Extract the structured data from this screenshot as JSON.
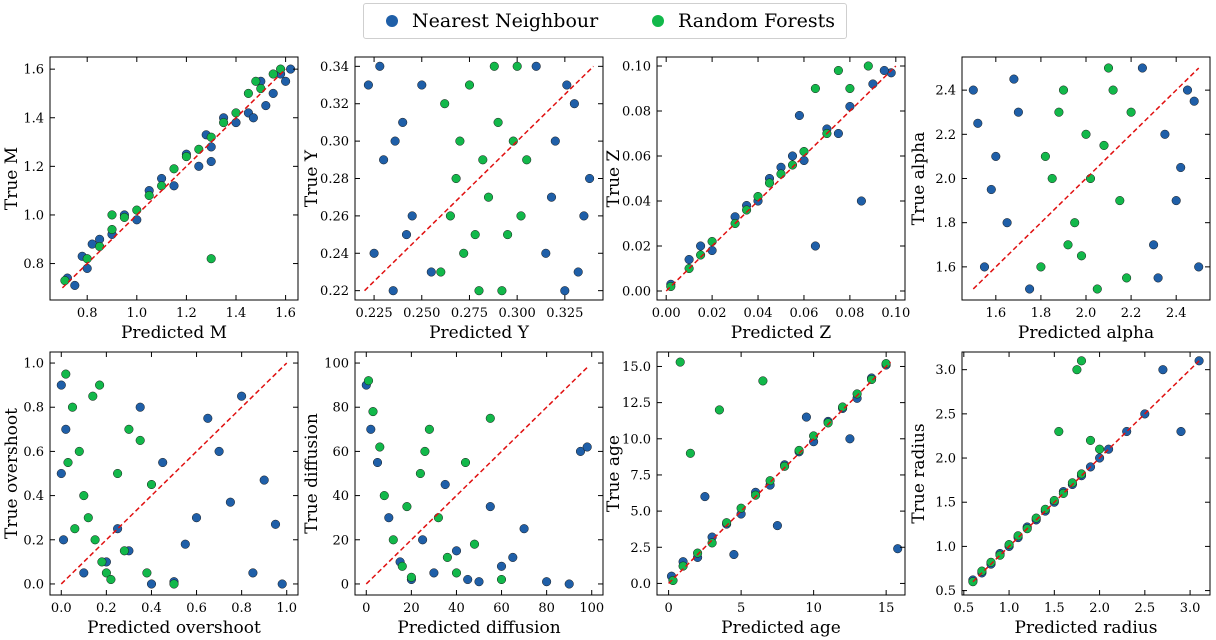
{
  "legend": {
    "items": [
      {
        "label": "Nearest Neighbour",
        "color": "#1f5fa8"
      },
      {
        "label": "Random Forests",
        "color": "#12b84a"
      }
    ]
  },
  "chart_data": [
    {
      "type": "scatter",
      "xlabel": "Predicted M",
      "ylabel": "True M",
      "xlim": [
        0.65,
        1.65
      ],
      "ylim": [
        0.65,
        1.65
      ],
      "xticks": [
        "0.8",
        "1.0",
        "1.2",
        "1.4",
        "1.6"
      ],
      "xtick_values": [
        0.8,
        1.0,
        1.2,
        1.4,
        1.6
      ],
      "yticks": [
        "0.8",
        "1.0",
        "1.2",
        "1.4",
        "1.6"
      ],
      "ytick_values": [
        0.8,
        1.0,
        1.2,
        1.4,
        1.6
      ],
      "diagonal": [
        0.7,
        1.6
      ],
      "series": [
        {
          "name": "Nearest Neighbour",
          "x": [
            0.72,
            0.8,
            0.9,
            1.0,
            1.05,
            1.15,
            1.2,
            1.3,
            1.35,
            1.45,
            1.5,
            1.58,
            0.85,
            0.95,
            1.1,
            1.25,
            1.4,
            1.55,
            0.78,
            1.6,
            0.82,
            1.28,
            1.47,
            1.52,
            0.75,
            1.62,
            1.3
          ],
          "y": [
            0.74,
            0.78,
            0.92,
            0.98,
            1.1,
            1.12,
            1.25,
            1.28,
            1.4,
            1.42,
            1.55,
            1.58,
            0.9,
            1.0,
            1.15,
            1.2,
            1.38,
            1.5,
            0.83,
            1.55,
            0.88,
            1.33,
            1.4,
            1.45,
            0.71,
            1.6,
            1.22
          ]
        },
        {
          "name": "Random Forests",
          "x": [
            0.71,
            0.8,
            0.9,
            1.0,
            1.1,
            1.2,
            1.3,
            1.4,
            1.5,
            1.55,
            0.85,
            0.95,
            1.05,
            1.15,
            1.25,
            1.35,
            1.45,
            1.58,
            1.3,
            0.9,
            1.48
          ],
          "y": [
            0.73,
            0.82,
            0.94,
            1.02,
            1.12,
            1.24,
            1.32,
            1.42,
            1.52,
            1.58,
            0.87,
            0.99,
            1.08,
            1.19,
            1.27,
            1.38,
            1.5,
            1.6,
            0.82,
            1.0,
            1.55
          ]
        }
      ]
    },
    {
      "type": "scatter",
      "xlabel": "Predicted Y",
      "ylabel": "True Y",
      "xlim": [
        0.215,
        0.345
      ],
      "ylim": [
        0.215,
        0.345
      ],
      "xticks": [
        "0.225",
        "0.250",
        "0.275",
        "0.300",
        "0.325"
      ],
      "xtick_values": [
        0.225,
        0.25,
        0.275,
        0.3,
        0.325
      ],
      "yticks": [
        "0.22",
        "0.24",
        "0.26",
        "0.28",
        "0.30",
        "0.32",
        "0.34"
      ],
      "ytick_values": [
        0.22,
        0.24,
        0.26,
        0.28,
        0.3,
        0.32,
        0.34
      ],
      "diagonal": [
        0.22,
        0.34
      ],
      "series": [
        {
          "name": "Nearest Neighbour",
          "x": [
            0.222,
            0.225,
            0.23,
            0.235,
            0.24,
            0.245,
            0.25,
            0.255,
            0.31,
            0.315,
            0.32,
            0.325,
            0.33,
            0.335,
            0.338,
            0.228,
            0.242,
            0.318,
            0.332,
            0.236,
            0.326
          ],
          "y": [
            0.33,
            0.24,
            0.29,
            0.22,
            0.31,
            0.26,
            0.33,
            0.23,
            0.34,
            0.24,
            0.3,
            0.22,
            0.32,
            0.26,
            0.28,
            0.34,
            0.25,
            0.27,
            0.23,
            0.3,
            0.33
          ]
        },
        {
          "name": "Random Forests",
          "x": [
            0.26,
            0.265,
            0.27,
            0.275,
            0.28,
            0.285,
            0.29,
            0.295,
            0.3,
            0.305,
            0.262,
            0.272,
            0.282,
            0.292,
            0.302,
            0.268,
            0.288,
            0.298,
            0.278
          ],
          "y": [
            0.23,
            0.26,
            0.3,
            0.33,
            0.22,
            0.27,
            0.31,
            0.25,
            0.34,
            0.29,
            0.32,
            0.24,
            0.29,
            0.22,
            0.26,
            0.28,
            0.34,
            0.3,
            0.25
          ]
        }
      ]
    },
    {
      "type": "scatter",
      "xlabel": "Predicted Z",
      "ylabel": "True Z",
      "xlim": [
        -0.004,
        0.104
      ],
      "ylim": [
        -0.004,
        0.104
      ],
      "xticks": [
        "0.00",
        "0.02",
        "0.04",
        "0.06",
        "0.08",
        "0.10"
      ],
      "xtick_values": [
        0.0,
        0.02,
        0.04,
        0.06,
        0.08,
        0.1
      ],
      "yticks": [
        "0.00",
        "0.02",
        "0.04",
        "0.06",
        "0.08",
        "0.10"
      ],
      "ytick_values": [
        0.0,
        0.02,
        0.04,
        0.06,
        0.08,
        0.1
      ],
      "diagonal": [
        0.0,
        0.1
      ],
      "series": [
        {
          "name": "Nearest Neighbour",
          "x": [
            0.002,
            0.01,
            0.02,
            0.03,
            0.04,
            0.05,
            0.06,
            0.07,
            0.08,
            0.09,
            0.098,
            0.015,
            0.035,
            0.055,
            0.075,
            0.095,
            0.085,
            0.065,
            0.045,
            0.058
          ],
          "y": [
            0.003,
            0.014,
            0.018,
            0.033,
            0.04,
            0.055,
            0.058,
            0.072,
            0.082,
            0.092,
            0.097,
            0.02,
            0.038,
            0.06,
            0.07,
            0.098,
            0.04,
            0.02,
            0.05,
            0.078
          ]
        },
        {
          "name": "Random Forests",
          "x": [
            0.002,
            0.01,
            0.02,
            0.03,
            0.04,
            0.05,
            0.06,
            0.07,
            0.08,
            0.088,
            0.015,
            0.035,
            0.055,
            0.065,
            0.075,
            0.045
          ],
          "y": [
            0.002,
            0.01,
            0.022,
            0.03,
            0.042,
            0.052,
            0.062,
            0.07,
            0.09,
            0.1,
            0.016,
            0.036,
            0.056,
            0.09,
            0.098,
            0.048
          ]
        }
      ]
    },
    {
      "type": "scatter",
      "xlabel": "Predicted alpha",
      "ylabel": "True alpha",
      "xlim": [
        1.45,
        2.55
      ],
      "ylim": [
        1.45,
        2.55
      ],
      "xticks": [
        "1.6",
        "1.8",
        "2.0",
        "2.2",
        "2.4"
      ],
      "xtick_values": [
        1.6,
        1.8,
        2.0,
        2.2,
        2.4
      ],
      "yticks": [
        "1.6",
        "1.8",
        "2.0",
        "2.2",
        "2.4"
      ],
      "ytick_values": [
        1.6,
        1.8,
        2.0,
        2.2,
        2.4
      ],
      "diagonal": [
        1.5,
        2.5
      ],
      "series": [
        {
          "name": "Nearest Neighbour",
          "x": [
            1.5,
            1.55,
            1.6,
            1.65,
            1.7,
            1.75,
            2.25,
            2.3,
            2.35,
            2.4,
            2.45,
            2.5,
            1.58,
            1.68,
            2.32,
            2.42,
            1.52,
            2.48
          ],
          "y": [
            2.4,
            1.6,
            2.1,
            1.8,
            2.3,
            1.5,
            2.5,
            1.7,
            2.2,
            1.9,
            2.4,
            1.6,
            1.95,
            2.45,
            1.55,
            2.05,
            2.25,
            2.35
          ]
        },
        {
          "name": "Random Forests",
          "x": [
            1.8,
            1.85,
            1.9,
            1.95,
            2.0,
            2.05,
            2.1,
            2.15,
            2.2,
            1.82,
            1.92,
            2.02,
            2.12,
            2.18,
            1.88,
            1.98,
            2.08
          ],
          "y": [
            1.6,
            2.0,
            2.4,
            1.8,
            2.2,
            1.5,
            2.5,
            1.9,
            2.3,
            2.1,
            1.7,
            2.0,
            2.4,
            1.55,
            2.3,
            1.65,
            2.15
          ]
        }
      ]
    },
    {
      "type": "scatter",
      "xlabel": "Predicted overshoot",
      "ylabel": "True overshoot",
      "xlim": [
        -0.05,
        1.05
      ],
      "ylim": [
        -0.05,
        1.05
      ],
      "xticks": [
        "0.0",
        "0.2",
        "0.4",
        "0.6",
        "0.8",
        "1.0"
      ],
      "xtick_values": [
        0.0,
        0.2,
        0.4,
        0.6,
        0.8,
        1.0
      ],
      "yticks": [
        "0.0",
        "0.2",
        "0.4",
        "0.6",
        "0.8",
        "1.0"
      ],
      "ytick_values": [
        0.0,
        0.2,
        0.4,
        0.6,
        0.8,
        1.0
      ],
      "diagonal": [
        0.0,
        1.0
      ],
      "series": [
        {
          "name": "Nearest Neighbour",
          "x": [
            0.0,
            0.0,
            0.01,
            0.02,
            0.1,
            0.2,
            0.3,
            0.4,
            0.5,
            0.6,
            0.7,
            0.8,
            0.9,
            0.95,
            0.65,
            0.45,
            0.75,
            0.85,
            0.25,
            0.55,
            0.98,
            0.35
          ],
          "y": [
            0.9,
            0.5,
            0.2,
            0.7,
            0.05,
            0.1,
            0.15,
            0.0,
            0.01,
            0.3,
            0.6,
            0.85,
            0.47,
            0.27,
            0.75,
            0.55,
            0.37,
            0.05,
            0.25,
            0.18,
            0.0,
            0.8
          ]
        },
        {
          "name": "Random Forests",
          "x": [
            0.02,
            0.05,
            0.08,
            0.1,
            0.12,
            0.15,
            0.18,
            0.2,
            0.22,
            0.25,
            0.3,
            0.35,
            0.4,
            0.06,
            0.14,
            0.28,
            0.38,
            0.03,
            0.17,
            0.5
          ],
          "y": [
            0.95,
            0.8,
            0.6,
            0.4,
            0.3,
            0.2,
            0.1,
            0.05,
            0.02,
            0.5,
            0.7,
            0.65,
            0.45,
            0.25,
            0.85,
            0.15,
            0.05,
            0.55,
            0.9,
            0.0
          ]
        }
      ]
    },
    {
      "type": "scatter",
      "xlabel": "Predicted diffusion",
      "ylabel": "True diffusion",
      "xlim": [
        -5,
        105
      ],
      "ylim": [
        -5,
        105
      ],
      "xticks": [
        "0",
        "20",
        "40",
        "60",
        "80",
        "100"
      ],
      "xtick_values": [
        0,
        20,
        40,
        60,
        80,
        100
      ],
      "yticks": [
        "0",
        "20",
        "40",
        "60",
        "80",
        "100"
      ],
      "ytick_values": [
        0,
        20,
        40,
        60,
        80,
        100
      ],
      "diagonal": [
        0,
        98
      ],
      "series": [
        {
          "name": "Nearest Neighbour",
          "x": [
            0,
            2,
            5,
            10,
            15,
            20,
            25,
            30,
            40,
            50,
            60,
            70,
            80,
            90,
            95,
            98,
            35,
            45,
            55,
            65
          ],
          "y": [
            90,
            70,
            55,
            30,
            10,
            2,
            20,
            5,
            15,
            1,
            8,
            25,
            1,
            0,
            60,
            62,
            45,
            2,
            35,
            12
          ]
        },
        {
          "name": "Random Forests",
          "x": [
            1,
            3,
            6,
            8,
            12,
            16,
            20,
            24,
            28,
            32,
            36,
            40,
            44,
            48,
            55,
            60,
            18,
            26
          ],
          "y": [
            92,
            78,
            62,
            40,
            20,
            8,
            3,
            50,
            70,
            30,
            12,
            5,
            55,
            18,
            75,
            2,
            35,
            60
          ]
        }
      ]
    },
    {
      "type": "scatter",
      "xlabel": "Predicted age",
      "ylabel": "True age",
      "xlim": [
        -0.8,
        16.3
      ],
      "ylim": [
        -0.8,
        16.0
      ],
      "xticks": [
        "0",
        "5",
        "10",
        "15"
      ],
      "xtick_values": [
        0,
        5,
        10,
        15
      ],
      "yticks": [
        "0.0",
        "2.5",
        "5.0",
        "7.5",
        "10.0",
        "12.5",
        "15.0"
      ],
      "ytick_values": [
        0.0,
        2.5,
        5.0,
        7.5,
        10.0,
        12.5,
        15.0
      ],
      "diagonal": [
        0,
        15.3
      ],
      "series": [
        {
          "name": "Nearest Neighbour",
          "x": [
            0.2,
            1,
            2,
            3,
            4,
            5,
            6,
            7,
            8,
            9,
            10,
            11,
            12,
            13,
            14,
            15,
            15.8,
            2.5,
            7.5,
            12.5,
            4.5,
            9.5
          ],
          "y": [
            0.5,
            1.5,
            1.8,
            3.2,
            4.1,
            4.8,
            6.3,
            6.8,
            8.2,
            9.1,
            9.8,
            11.2,
            12.1,
            12.8,
            14.2,
            15.1,
            2.4,
            6.0,
            4.0,
            10.0,
            2.0,
            11.5
          ]
        },
        {
          "name": "Random Forests",
          "x": [
            0.3,
            1,
            2,
            3,
            4,
            5,
            6,
            7,
            8,
            9,
            10,
            11,
            12,
            13,
            14,
            15,
            1.5,
            3.5,
            6.5,
            0.8
          ],
          "y": [
            0.2,
            1.2,
            2.1,
            2.8,
            4.2,
            5.2,
            6.1,
            7.1,
            8.1,
            9.2,
            10.2,
            11.1,
            12.2,
            13.1,
            14.1,
            15.2,
            9.0,
            12.0,
            14.0,
            15.3
          ]
        }
      ]
    },
    {
      "type": "scatter",
      "xlabel": "Predicted radius",
      "ylabel": "True radius",
      "xlim": [
        0.48,
        3.22
      ],
      "ylim": [
        0.45,
        3.2
      ],
      "xticks": [
        "0.5",
        "1.0",
        "1.5",
        "2.0",
        "2.5",
        "3.0"
      ],
      "xtick_values": [
        0.5,
        1.0,
        1.5,
        2.0,
        2.5,
        3.0
      ],
      "yticks": [
        "0.5",
        "1.0",
        "1.5",
        "2.0",
        "2.5",
        "3.0"
      ],
      "ytick_values": [
        0.5,
        1.0,
        1.5,
        2.0,
        2.5,
        3.0
      ],
      "diagonal": [
        0.6,
        3.1
      ],
      "series": [
        {
          "name": "Nearest Neighbour",
          "x": [
            0.6,
            0.7,
            0.8,
            0.9,
            1.0,
            1.1,
            1.2,
            1.3,
            1.4,
            1.5,
            1.6,
            1.7,
            1.8,
            1.9,
            2.0,
            2.1,
            2.3,
            2.5,
            2.7,
            2.9,
            3.1
          ],
          "y": [
            0.62,
            0.7,
            0.8,
            0.92,
            1.0,
            1.1,
            1.22,
            1.3,
            1.4,
            1.5,
            1.62,
            1.7,
            1.8,
            1.9,
            2.0,
            2.1,
            2.3,
            2.5,
            3.0,
            2.3,
            3.1
          ]
        },
        {
          "name": "Random Forests",
          "x": [
            0.6,
            0.7,
            0.8,
            0.9,
            1.0,
            1.1,
            1.2,
            1.3,
            1.4,
            1.5,
            1.6,
            1.7,
            1.8,
            1.9,
            2.0,
            1.55,
            1.75,
            1.8
          ],
          "y": [
            0.6,
            0.72,
            0.82,
            0.9,
            1.02,
            1.12,
            1.2,
            1.32,
            1.42,
            1.52,
            1.6,
            1.72,
            1.82,
            2.2,
            2.1,
            2.3,
            3.0,
            3.1
          ]
        }
      ]
    }
  ]
}
